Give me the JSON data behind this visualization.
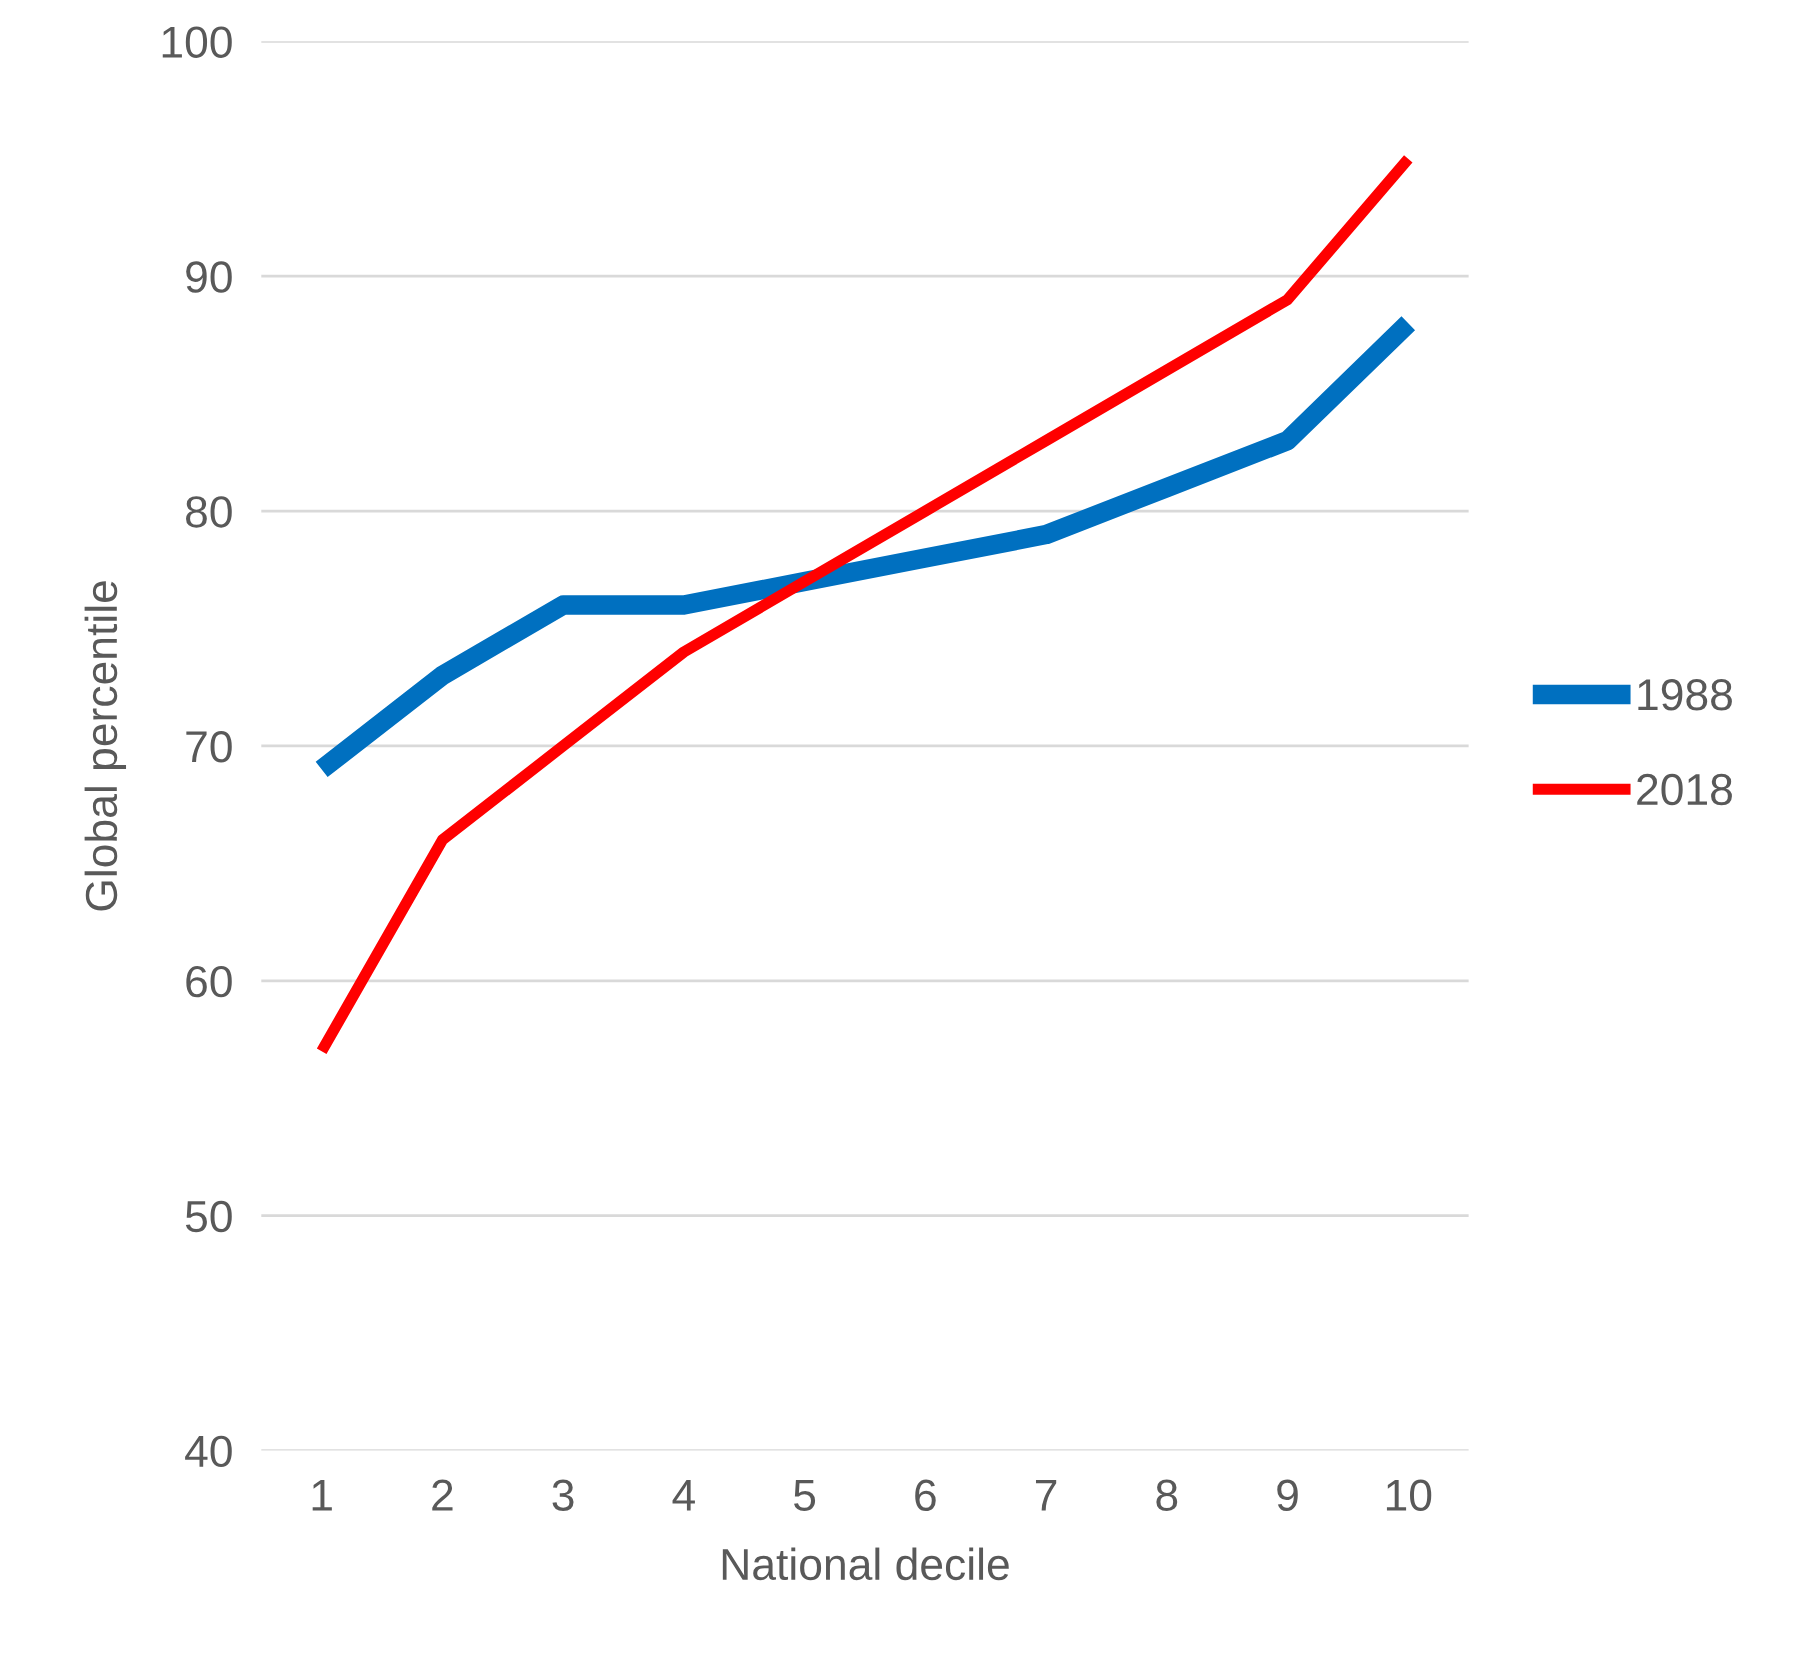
{
  "chart_data": {
    "type": "line",
    "xlabel": "National decile",
    "ylabel": "Global percentile",
    "categories": [
      "1",
      "2",
      "3",
      "4",
      "5",
      "6",
      "7",
      "8",
      "9",
      "10"
    ],
    "series": [
      {
        "name": "1988",
        "color": "#0070c0",
        "values": [
          69,
          73,
          76,
          76,
          77,
          78,
          79,
          81,
          83,
          88
        ]
      },
      {
        "name": "2018",
        "color": "#ff0000",
        "values": [
          57,
          66,
          70,
          74,
          77,
          80,
          83,
          86,
          89,
          95
        ]
      }
    ],
    "ylim": [
      40,
      100
    ],
    "yticks": [
      40,
      50,
      60,
      70,
      80,
      90,
      100
    ],
    "grid": "y",
    "legend": "right"
  }
}
